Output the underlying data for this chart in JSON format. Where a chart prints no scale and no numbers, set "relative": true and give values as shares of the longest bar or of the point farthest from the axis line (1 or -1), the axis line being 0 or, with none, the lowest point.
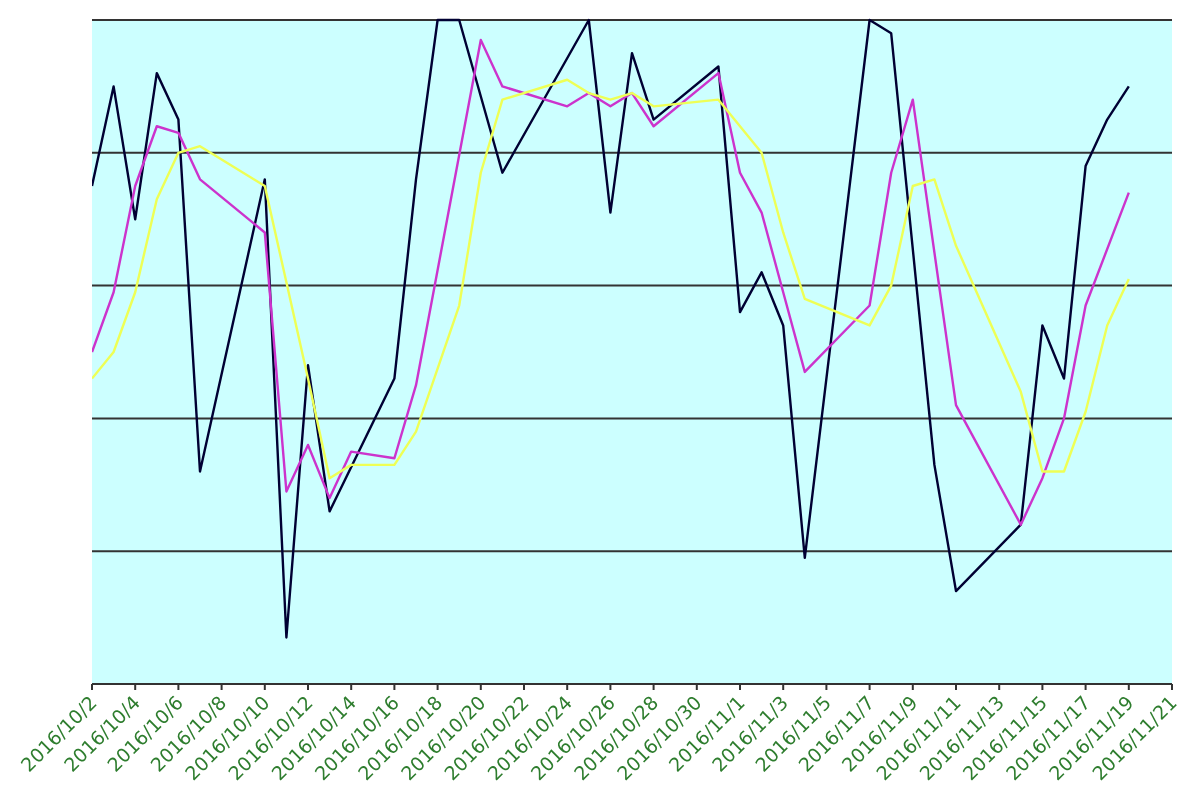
{
  "chart_data": {
    "type": "line",
    "relative": true,
    "grid": "y",
    "marker": "none",
    "line_style": "solid",
    "xlim": [
      "2016-10-02",
      "2016-11-21"
    ],
    "xticks": [
      {
        "value": "2016-10-02",
        "label": "2016/10/2"
      },
      {
        "value": "2016-10-04",
        "label": "2016/10/4"
      },
      {
        "value": "2016-10-06",
        "label": "2016/10/6"
      },
      {
        "value": "2016-10-08",
        "label": "2016/10/8"
      },
      {
        "value": "2016-10-10",
        "label": "2016/10/10"
      },
      {
        "value": "2016-10-12",
        "label": "2016/10/12"
      },
      {
        "value": "2016-10-14",
        "label": "2016/10/14"
      },
      {
        "value": "2016-10-16",
        "label": "2016/10/16"
      },
      {
        "value": "2016-10-18",
        "label": "2016/10/18"
      },
      {
        "value": "2016-10-20",
        "label": "2016/10/20"
      },
      {
        "value": "2016-10-22",
        "label": "2016/10/22"
      },
      {
        "value": "2016-10-24",
        "label": "2016/10/24"
      },
      {
        "value": "2016-10-26",
        "label": "2016/10/26"
      },
      {
        "value": "2016-10-28",
        "label": "2016/10/28"
      },
      {
        "value": "2016-10-30",
        "label": "2016/10/30"
      },
      {
        "value": "2016-11-01",
        "label": "2016/11/1"
      },
      {
        "value": "2016-11-03",
        "label": "2016/11/3"
      },
      {
        "value": "2016-11-05",
        "label": "2016/11/5"
      },
      {
        "value": "2016-11-07",
        "label": "2016/11/7"
      },
      {
        "value": "2016-11-09",
        "label": "2016/11/9"
      },
      {
        "value": "2016-11-11",
        "label": "2016/11/11"
      },
      {
        "value": "2016-11-13",
        "label": "2016/11/13"
      },
      {
        "value": "2016-11-15",
        "label": "2016/11/15"
      },
      {
        "value": "2016-11-17",
        "label": "2016/11/17"
      },
      {
        "value": "2016-11-19",
        "label": "2016/11/19"
      },
      {
        "value": "2016-11-21",
        "label": "2016/11/21"
      }
    ],
    "series": [
      {
        "color": "#000033",
        "x": [
          "2016-10-02",
          "2016-10-03",
          "2016-10-04",
          "2016-10-05",
          "2016-10-06",
          "2016-10-07",
          "2016-10-10",
          "2016-10-11",
          "2016-10-12",
          "2016-10-13",
          "2016-10-16",
          "2016-10-17",
          "2016-10-18",
          "2016-10-19",
          "2016-10-21",
          "2016-10-25",
          "2016-10-26",
          "2016-10-27",
          "2016-10-28",
          "2016-10-31",
          "2016-11-01",
          "2016-11-02",
          "2016-11-03",
          "2016-11-04",
          "2016-11-07",
          "2016-11-08",
          "2016-11-10",
          "2016-11-11",
          "2016-11-14",
          "2016-11-15",
          "2016-11-16",
          "2016-11-17",
          "2016-11-18",
          "2016-11-19"
        ],
        "values": [
          0.75,
          0.9,
          0.7,
          0.92,
          0.85,
          0.32,
          0.76,
          0.07,
          0.48,
          0.26,
          0.46,
          0.76,
          1.0,
          1.0,
          0.77,
          1.0,
          0.71,
          0.95,
          0.85,
          0.93,
          0.56,
          0.62,
          0.54,
          0.19,
          1.0,
          0.98,
          0.33,
          0.14,
          0.24,
          0.54,
          0.46,
          0.78,
          0.85,
          0.9
        ]
      },
      {
        "color": "#cc33cc",
        "x": [
          "2016-10-02",
          "2016-10-03",
          "2016-10-04",
          "2016-10-05",
          "2016-10-06",
          "2016-10-07",
          "2016-10-10",
          "2016-10-11",
          "2016-10-12",
          "2016-10-13",
          "2016-10-14",
          "2016-10-16",
          "2016-10-17",
          "2016-10-20",
          "2016-10-21",
          "2016-10-24",
          "2016-10-25",
          "2016-10-26",
          "2016-10-27",
          "2016-10-28",
          "2016-10-31",
          "2016-11-01",
          "2016-11-02",
          "2016-11-03",
          "2016-11-04",
          "2016-11-07",
          "2016-11-08",
          "2016-11-09",
          "2016-11-11",
          "2016-11-14",
          "2016-11-15",
          "2016-11-16",
          "2016-11-17",
          "2016-11-19"
        ],
        "values": [
          0.5,
          0.59,
          0.75,
          0.84,
          0.83,
          0.76,
          0.68,
          0.29,
          0.36,
          0.28,
          0.35,
          0.34,
          0.45,
          0.97,
          0.9,
          0.87,
          0.89,
          0.87,
          0.89,
          0.84,
          0.92,
          0.77,
          0.71,
          0.59,
          0.47,
          0.57,
          0.77,
          0.88,
          0.42,
          0.24,
          0.31,
          0.4,
          0.57,
          0.74
        ]
      },
      {
        "color": "#eeff55",
        "x": [
          "2016-10-02",
          "2016-10-03",
          "2016-10-04",
          "2016-10-05",
          "2016-10-06",
          "2016-10-07",
          "2016-10-10",
          "2016-10-12",
          "2016-10-13",
          "2016-10-14",
          "2016-10-16",
          "2016-10-17",
          "2016-10-19",
          "2016-10-20",
          "2016-10-21",
          "2016-10-24",
          "2016-10-25",
          "2016-10-26",
          "2016-10-27",
          "2016-10-28",
          "2016-10-31",
          "2016-11-02",
          "2016-11-03",
          "2016-11-04",
          "2016-11-07",
          "2016-11-08",
          "2016-11-09",
          "2016-11-10",
          "2016-11-11",
          "2016-11-14",
          "2016-11-15",
          "2016-11-16",
          "2016-11-17",
          "2016-11-18",
          "2016-11-19"
        ],
        "values": [
          0.46,
          0.5,
          0.59,
          0.73,
          0.8,
          0.81,
          0.75,
          0.46,
          0.31,
          0.33,
          0.33,
          0.38,
          0.57,
          0.77,
          0.88,
          0.91,
          0.89,
          0.88,
          0.89,
          0.87,
          0.88,
          0.8,
          0.68,
          0.58,
          0.54,
          0.6,
          0.75,
          0.76,
          0.66,
          0.44,
          0.32,
          0.32,
          0.41,
          0.54,
          0.61
        ]
      }
    ]
  }
}
